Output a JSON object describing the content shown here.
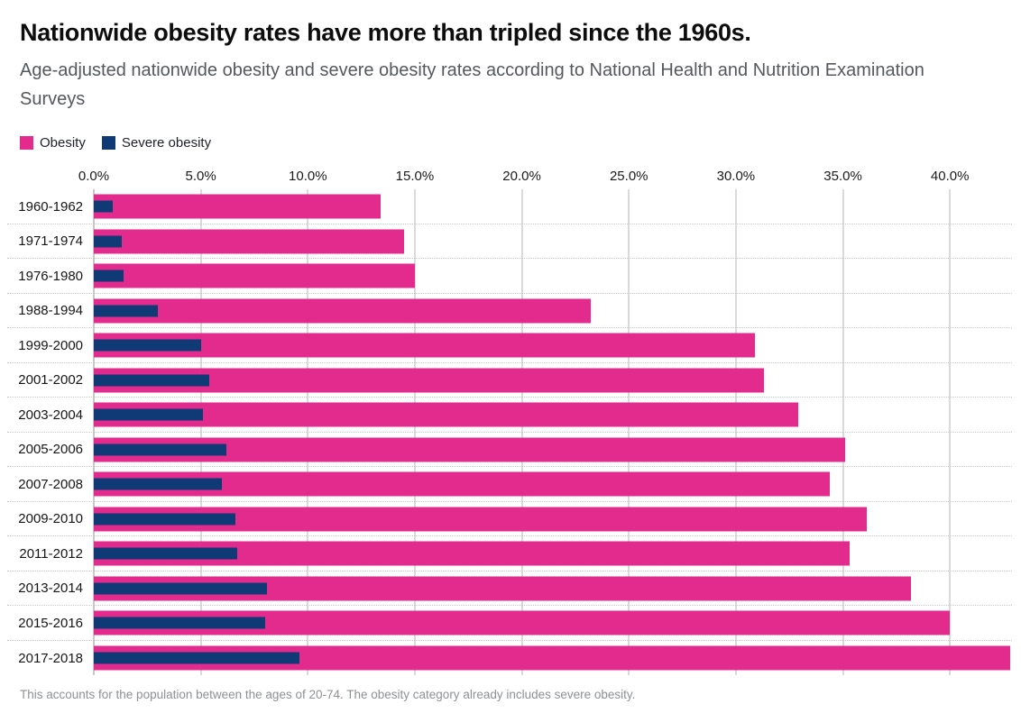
{
  "header": {
    "title": "Nationwide obesity rates have more than tripled since the 1960s.",
    "subtitle": "Age-adjusted nationwide obesity and severe obesity rates according to National Health and Nutrition Examination Surveys"
  },
  "legend": {
    "items": [
      {
        "label": "Obesity",
        "color": "#e32a8d"
      },
      {
        "label": "Severe obesity",
        "color": "#0f3a76"
      }
    ]
  },
  "footer": {
    "note": "This accounts for the population between the ages of 20-74. The obesity category already includes severe obesity."
  },
  "colors": {
    "obesity_pink": "#e32a8d",
    "severe_navy": "#0f3a76",
    "gridline": "#dadada",
    "row_separator": "#c8c8c8"
  },
  "chart_data": {
    "type": "bar",
    "orientation": "horizontal",
    "title": "Nationwide obesity rates have more than tripled since the 1960s.",
    "subtitle": "Age-adjusted nationwide obesity and severe obesity rates according to National Health and Nutrition Examination Surveys",
    "note": "This accounts for the population between the ages of 20-74. The obesity category already includes severe obesity.",
    "categories": [
      "1960-1962",
      "1971-1974",
      "1976-1980",
      "1988-1994",
      "1999-2000",
      "2001-2002",
      "2003-2004",
      "2005-2006",
      "2007-2008",
      "2009-2010",
      "2011-2012",
      "2013-2014",
      "2015-2016",
      "2017-2018"
    ],
    "series": [
      {
        "name": "Obesity",
        "color": "#e32a8d",
        "values": [
          13.4,
          14.5,
          15.0,
          23.2,
          30.9,
          31.3,
          32.9,
          35.1,
          34.4,
          36.1,
          35.3,
          38.2,
          40.0,
          42.8
        ]
      },
      {
        "name": "Severe obesity",
        "color": "#0f3a76",
        "values": [
          0.9,
          1.3,
          1.4,
          3.0,
          5.0,
          5.4,
          5.1,
          6.2,
          6.0,
          6.6,
          6.7,
          8.1,
          8.0,
          9.6
        ]
      }
    ],
    "x_axis": {
      "tick_labels": [
        "0.0%",
        "5.0%",
        "10.0%",
        "15.0%",
        "20.0%",
        "25.0%",
        "30.0%",
        "35.0%",
        "40.0%"
      ],
      "tick_values": [
        0,
        5,
        10,
        15,
        20,
        25,
        30,
        35,
        40
      ],
      "max": 42.9,
      "unit": "%"
    },
    "xlabel": "",
    "ylabel": "",
    "grid": "vertical solid gridlines at 5% steps, dotted horizontal row separators",
    "legend_position": "top-left"
  }
}
